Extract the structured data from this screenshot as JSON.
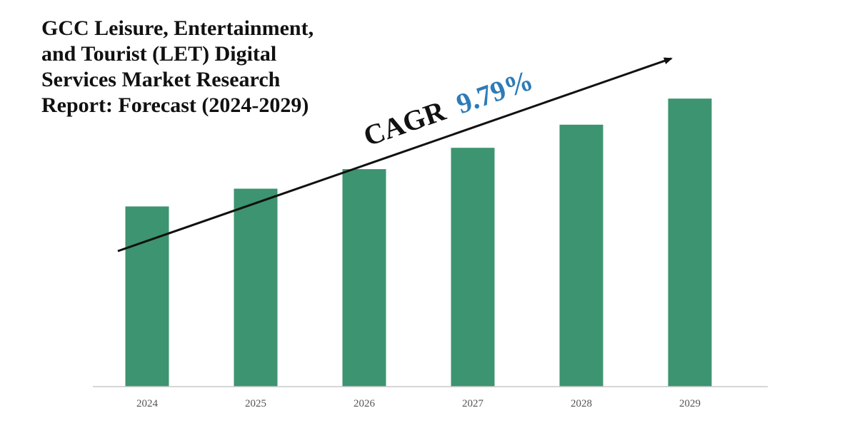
{
  "chart_data": {
    "type": "bar",
    "title": "GCC Leisure, Entertainment,\nand Tourist (LET) Digital\nServices Market Research\nReport: Forecast (2024-2029)",
    "categories": [
      "2024",
      "2025",
      "2026",
      "2027",
      "2028",
      "2029"
    ],
    "values": [
      3.04,
      3.34,
      3.67,
      4.03,
      4.42,
      4.86
    ],
    "ylim": [
      0,
      5.26
    ],
    "xlabel": "",
    "ylabel": "",
    "grid": false,
    "legend": "none",
    "bar_color": "#3d9470",
    "axis_color": "#c8c8c8",
    "tick_label_color": "#555555",
    "annotation": {
      "prefix": "CAGR",
      "value": "9.79%",
      "prefix_color": "#111111",
      "value_color": "#2e7bb8",
      "arrow_color": "#111111"
    }
  }
}
